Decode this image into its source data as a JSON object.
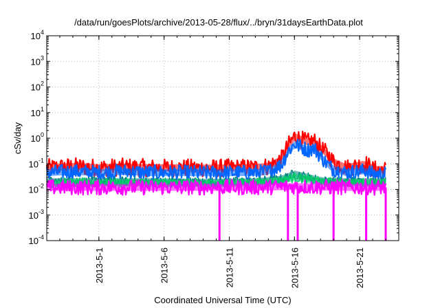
{
  "chart_data": {
    "type": "line",
    "title": "/data/run/goesPlots/archive/2013-05-28/flux/../bryn/31daysEarthData.plot",
    "xlabel": "Coordinated Universal Time (UTC)",
    "ylabel": "cSv/day",
    "yscale": "log",
    "ylim": [
      0.0001,
      10000
    ],
    "yticks": [
      {
        "value": 0.0001,
        "base": "10",
        "exp": "-4"
      },
      {
        "value": 0.001,
        "base": "10",
        "exp": "-3"
      },
      {
        "value": 0.01,
        "base": "10",
        "exp": "-2"
      },
      {
        "value": 0.1,
        "base": "10",
        "exp": "-1"
      },
      {
        "value": 1,
        "base": "10",
        "exp": "0"
      },
      {
        "value": 10,
        "base": "10",
        "exp": "1"
      },
      {
        "value": 100,
        "base": "10",
        "exp": "2"
      },
      {
        "value": 1000,
        "base": "10",
        "exp": "3"
      },
      {
        "value": 10000,
        "base": "10",
        "exp": "4"
      }
    ],
    "xlim": [
      "2013-04-27",
      "2013-05-24"
    ],
    "xticks": [
      "2013-5-1",
      "2013-5-6",
      "2013-5-11",
      "2013-5-16",
      "2013-5-21"
    ],
    "xtick_dates": [
      "2013-05-01",
      "2013-05-06",
      "2013-05-11",
      "2013-05-16",
      "2013-05-21"
    ],
    "grid": true,
    "data_end": "2013-05-23",
    "series": [
      {
        "color": "#ff0000",
        "x": [
          "2013-04-27",
          "2013-04-29",
          "2013-05-01",
          "2013-05-03",
          "2013-05-05",
          "2013-05-07",
          "2013-05-09",
          "2013-05-11",
          "2013-05-13",
          "2013-05-14",
          "2013-05-15",
          "2013-05-15T12:00",
          "2013-05-16",
          "2013-05-16T12:00",
          "2013-05-17",
          "2013-05-17T12:00",
          "2013-05-18",
          "2013-05-18T12:00",
          "2013-05-19",
          "2013-05-20",
          "2013-05-21",
          "2013-05-21T12:00",
          "2013-05-22",
          "2013-05-23"
        ],
        "y": [
          0.07,
          0.08,
          0.07,
          0.075,
          0.07,
          0.07,
          0.068,
          0.07,
          0.072,
          0.08,
          0.15,
          0.5,
          1.2,
          0.9,
          0.7,
          0.8,
          0.4,
          0.25,
          0.12,
          0.07,
          0.09,
          0.1,
          0.06,
          0.06
        ]
      },
      {
        "color": "#0066ff",
        "x": [
          "2013-04-27",
          "2013-04-29",
          "2013-05-01",
          "2013-05-03",
          "2013-05-05",
          "2013-05-07",
          "2013-05-09",
          "2013-05-11",
          "2013-05-13",
          "2013-05-14",
          "2013-05-15",
          "2013-05-15T12:00",
          "2013-05-16",
          "2013-05-16T12:00",
          "2013-05-17",
          "2013-05-17T12:00",
          "2013-05-18",
          "2013-05-18T12:00",
          "2013-05-19",
          "2013-05-20",
          "2013-05-21",
          "2013-05-21T12:00",
          "2013-05-22",
          "2013-05-23"
        ],
        "y": [
          0.045,
          0.05,
          0.045,
          0.05,
          0.045,
          0.045,
          0.044,
          0.045,
          0.046,
          0.05,
          0.09,
          0.3,
          0.6,
          0.45,
          0.35,
          0.4,
          0.2,
          0.1,
          0.06,
          0.045,
          0.05,
          0.055,
          0.04,
          0.04
        ]
      },
      {
        "color": "#008080",
        "x": [
          "2013-04-27",
          "2013-05-01",
          "2013-05-05",
          "2013-05-09",
          "2013-05-13",
          "2013-05-15",
          "2013-05-16",
          "2013-05-17",
          "2013-05-18",
          "2013-05-19",
          "2013-05-21",
          "2013-05-23"
        ],
        "y": [
          0.02,
          0.02,
          0.02,
          0.019,
          0.02,
          0.025,
          0.04,
          0.03,
          0.022,
          0.02,
          0.02,
          0.02
        ]
      },
      {
        "color": "#00cc66",
        "x": [
          "2013-04-27",
          "2013-05-01",
          "2013-05-05",
          "2013-05-09",
          "2013-05-13",
          "2013-05-15",
          "2013-05-16",
          "2013-05-17",
          "2013-05-18",
          "2013-05-19",
          "2013-05-21",
          "2013-05-23"
        ],
        "y": [
          0.018,
          0.018,
          0.018,
          0.017,
          0.018,
          0.022,
          0.03,
          0.025,
          0.02,
          0.018,
          0.018,
          0.018
        ]
      },
      {
        "color": "#ff00ff",
        "x": [
          "2013-04-27",
          "2013-05-01",
          "2013-05-05",
          "2013-05-09",
          "2013-05-13",
          "2013-05-16",
          "2013-05-19",
          "2013-05-21",
          "2013-05-23"
        ],
        "y": [
          0.012,
          0.012,
          0.012,
          0.012,
          0.012,
          0.013,
          0.012,
          0.012,
          0.012
        ]
      }
    ],
    "dropouts": [
      {
        "date": "2013-05-10T06:00",
        "value": 0.0001
      },
      {
        "date": "2013-05-15T12:00",
        "value": 0.0001
      },
      {
        "date": "2013-05-16T06:00",
        "value": 0.0001
      },
      {
        "date": "2013-05-19T00:00",
        "value": 0.0001
      },
      {
        "date": "2013-05-21T12:00",
        "value": 0.0001
      },
      {
        "date": "2013-05-23T00:00",
        "value": 0.0001
      }
    ]
  }
}
